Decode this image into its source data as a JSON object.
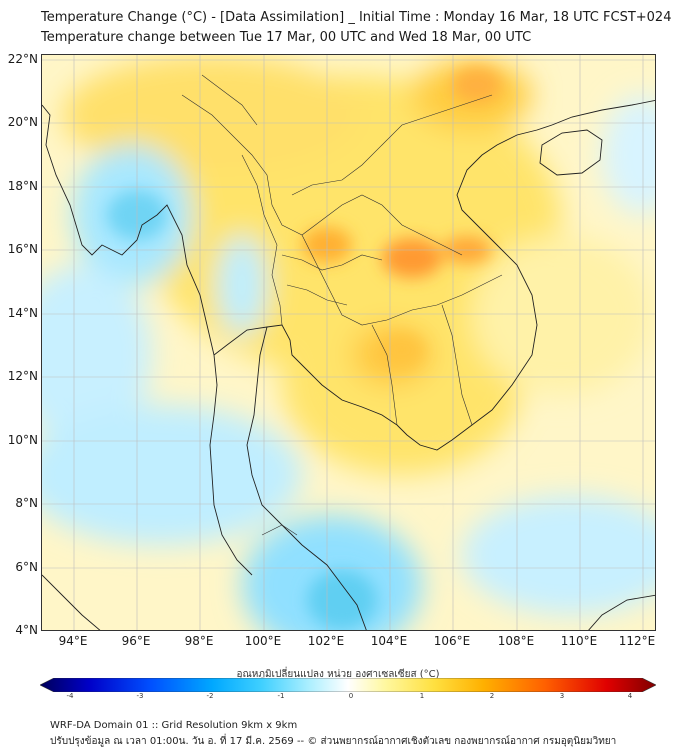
{
  "header": {
    "title_line1": "Temperature Change (°C) - [Data Assimilation] _ Initial Time : Monday 16 Mar, 18 UTC FCST+024",
    "title_line2": "Temperature change between Tue 17 Mar, 00 UTC and Wed 18 Mar, 00 UTC"
  },
  "map": {
    "lat_labels": [
      "22°N",
      "20°N",
      "18°N",
      "16°N",
      "14°N",
      "12°N",
      "10°N",
      "8°N",
      "6°N",
      "4°N"
    ],
    "lon_labels": [
      "94°E",
      "96°E",
      "98°E",
      "100°E",
      "102°E",
      "104°E",
      "106°E",
      "108°E",
      "110°E",
      "112°E"
    ],
    "colors": {
      "background_warm": "#fff8c0",
      "warm": "#ffe070",
      "warmer": "#ffc840",
      "hot": "#ff9a30",
      "cool": "#c8f0ff",
      "cold": "#5fd0f0",
      "coastline": "#222222",
      "gridline": "#bbbbbb"
    }
  },
  "colorbar": {
    "title": "อุณหภูมิเปลี่ยนแปลง หน่วย องศาเซลเซียส (°C)",
    "tick_labels": [
      "-4",
      "-3",
      "-2",
      "-1",
      "0",
      "1",
      "2",
      "3",
      "4"
    ],
    "gradient": [
      "#00005a",
      "#0000c8",
      "#0050ff",
      "#00a8ff",
      "#40d0ff",
      "#b0f0ff",
      "#ffffff",
      "#fff8a0",
      "#ffe040",
      "#ffb000",
      "#ff6000",
      "#e00000",
      "#800000"
    ]
  },
  "footer": {
    "line1": "WRF-DA Domain 01 :: Grid Resolution 9km x 9km",
    "line2": "ปรับปรุงข้อมูล ณ เวลา 01:00น. วัน อ. ที่ 17 มี.ค. 2569 -- © ส่วนพยากรณ์อากาศเชิงตัวเลข กองพยากรณ์อากาศ กรมอุตุนิยมวิทยา"
  }
}
